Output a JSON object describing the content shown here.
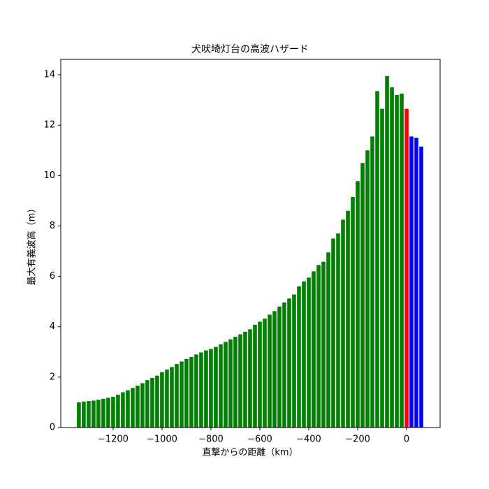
{
  "chart_data": {
    "type": "bar",
    "title": "犬吠埼灯台の高波ハザード",
    "xlabel": "直撃からの距離（km）",
    "ylabel": "最大有義波高（m）",
    "x": [
      -1340,
      -1320,
      -1300,
      -1280,
      -1260,
      -1240,
      -1220,
      -1200,
      -1180,
      -1160,
      -1140,
      -1120,
      -1100,
      -1080,
      -1060,
      -1040,
      -1020,
      -1000,
      -980,
      -960,
      -940,
      -920,
      -900,
      -880,
      -860,
      -840,
      -820,
      -800,
      -780,
      -760,
      -740,
      -720,
      -700,
      -680,
      -660,
      -640,
      -620,
      -600,
      -580,
      -560,
      -540,
      -520,
      -500,
      -480,
      -460,
      -440,
      -420,
      -400,
      -380,
      -360,
      -340,
      -320,
      -300,
      -280,
      -260,
      -240,
      -220,
      -200,
      -180,
      -160,
      -140,
      -120,
      -100,
      -80,
      -60,
      -40,
      -20,
      0,
      20,
      40,
      60
    ],
    "values": [
      1.0,
      1.03,
      1.05,
      1.07,
      1.1,
      1.14,
      1.18,
      1.22,
      1.3,
      1.4,
      1.48,
      1.57,
      1.66,
      1.76,
      1.88,
      1.97,
      2.06,
      2.2,
      2.3,
      2.4,
      2.52,
      2.62,
      2.72,
      2.8,
      2.9,
      2.98,
      3.06,
      3.12,
      3.2,
      3.3,
      3.4,
      3.5,
      3.6,
      3.7,
      3.8,
      3.9,
      4.08,
      4.2,
      4.32,
      4.48,
      4.62,
      4.8,
      4.96,
      5.12,
      5.28,
      5.6,
      5.8,
      5.95,
      6.2,
      6.45,
      6.58,
      6.95,
      7.5,
      7.7,
      8.25,
      8.6,
      9.15,
      9.78,
      10.5,
      11.0,
      11.55,
      13.35,
      12.65,
      13.95,
      13.5,
      13.2,
      13.25,
      12.65,
      11.55,
      11.5,
      11.15
    ],
    "colors": [
      "green",
      "green",
      "green",
      "green",
      "green",
      "green",
      "green",
      "green",
      "green",
      "green",
      "green",
      "green",
      "green",
      "green",
      "green",
      "green",
      "green",
      "green",
      "green",
      "green",
      "green",
      "green",
      "green",
      "green",
      "green",
      "green",
      "green",
      "green",
      "green",
      "green",
      "green",
      "green",
      "green",
      "green",
      "green",
      "green",
      "green",
      "green",
      "green",
      "green",
      "green",
      "green",
      "green",
      "green",
      "green",
      "green",
      "green",
      "green",
      "green",
      "green",
      "green",
      "green",
      "green",
      "green",
      "green",
      "green",
      "green",
      "green",
      "green",
      "green",
      "green",
      "green",
      "green",
      "green",
      "green",
      "green",
      "green",
      "red",
      "blue",
      "blue",
      "blue"
    ],
    "xlim": [
      -1414,
      137
    ],
    "ylim": [
      0,
      14.61
    ],
    "xticks": [
      {
        "value": -1200,
        "label": "−1200"
      },
      {
        "value": -1000,
        "label": "−1000"
      },
      {
        "value": -800,
        "label": "−800"
      },
      {
        "value": -600,
        "label": "−600"
      },
      {
        "value": -400,
        "label": "−400"
      },
      {
        "value": -200,
        "label": "−200"
      },
      0
    ],
    "yticks": [
      0,
      2,
      4,
      6,
      8,
      10,
      12,
      14
    ]
  }
}
